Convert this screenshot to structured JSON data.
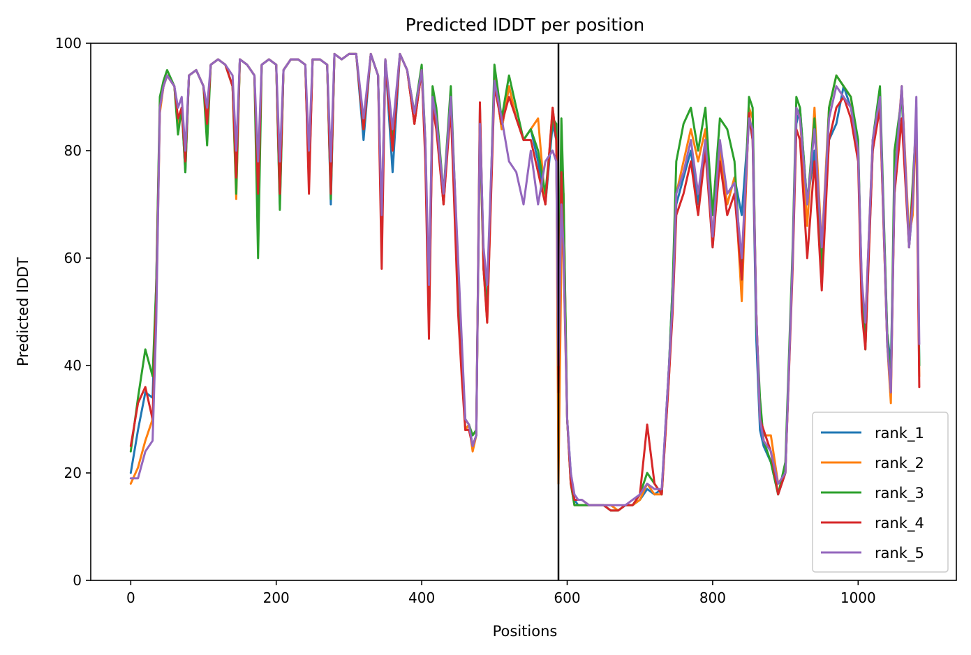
{
  "chart_data": {
    "type": "line",
    "title": "Predicted lDDT per position",
    "xlabel": "Positions",
    "ylabel": "Predicted lDDT",
    "xlim": [
      -55,
      1135
    ],
    "ylim": [
      0,
      100
    ],
    "xticks": [
      0,
      200,
      400,
      600,
      800,
      1000
    ],
    "yticks": [
      0,
      20,
      40,
      60,
      80,
      100
    ],
    "vline_x": 588,
    "grid": false,
    "legend_position": "lower-right",
    "colors": [
      "#1f77b4",
      "#ff7f0e",
      "#2ca02c",
      "#d62728",
      "#9467bd"
    ],
    "x": [
      0,
      10,
      20,
      30,
      35,
      40,
      45,
      50,
      60,
      65,
      70,
      75,
      80,
      90,
      100,
      105,
      110,
      120,
      130,
      140,
      145,
      150,
      160,
      170,
      175,
      180,
      190,
      200,
      205,
      210,
      220,
      230,
      240,
      245,
      250,
      260,
      270,
      275,
      280,
      290,
      300,
      310,
      320,
      330,
      340,
      345,
      350,
      360,
      370,
      380,
      390,
      400,
      405,
      410,
      415,
      420,
      430,
      440,
      450,
      455,
      460,
      465,
      470,
      475,
      480,
      485,
      490,
      500,
      510,
      520,
      530,
      540,
      550,
      560,
      570,
      580,
      585,
      588,
      592,
      595,
      600,
      605,
      610,
      615,
      620,
      630,
      640,
      650,
      660,
      670,
      680,
      690,
      700,
      710,
      720,
      730,
      740,
      745,
      750,
      760,
      770,
      780,
      790,
      800,
      810,
      820,
      830,
      840,
      850,
      855,
      860,
      865,
      870,
      880,
      890,
      900,
      910,
      915,
      920,
      930,
      940,
      950,
      960,
      970,
      980,
      990,
      1000,
      1005,
      1010,
      1020,
      1030,
      1040,
      1045,
      1050,
      1060,
      1070,
      1075,
      1080,
      1084
    ],
    "series": [
      {
        "name": "rank_1",
        "values": [
          20,
          28,
          35,
          34,
          55,
          88,
          92,
          94,
          92,
          85,
          88,
          76,
          94,
          95,
          92,
          84,
          96,
          97,
          96,
          92,
          74,
          97,
          96,
          94,
          68,
          96,
          97,
          96,
          70,
          95,
          97,
          97,
          96,
          74,
          97,
          97,
          96,
          70,
          98,
          97,
          98,
          98,
          82,
          98,
          94,
          66,
          97,
          76,
          98,
          95,
          85,
          95,
          80,
          48,
          88,
          85,
          70,
          90,
          58,
          42,
          28,
          29,
          25,
          27,
          88,
          60,
          50,
          94,
          84,
          92,
          86,
          82,
          84,
          78,
          70,
          85,
          82,
          30,
          82,
          70,
          30,
          20,
          15,
          14,
          14,
          14,
          14,
          14,
          13,
          13,
          14,
          14,
          15,
          17,
          16,
          17,
          40,
          55,
          70,
          75,
          80,
          70,
          82,
          62,
          80,
          70,
          75,
          68,
          86,
          82,
          45,
          28,
          25,
          22,
          16,
          20,
          60,
          85,
          88,
          70,
          80,
          60,
          82,
          85,
          92,
          88,
          80,
          55,
          45,
          80,
          90,
          46,
          40,
          72,
          92,
          62,
          70,
          88,
          40
        ]
      },
      {
        "name": "rank_2",
        "values": [
          18,
          21,
          26,
          30,
          50,
          87,
          92,
          94,
          92,
          84,
          88,
          77,
          94,
          95,
          92,
          84,
          96,
          97,
          96,
          92,
          71,
          97,
          96,
          94,
          72,
          96,
          97,
          96,
          71,
          95,
          97,
          97,
          96,
          74,
          97,
          97,
          96,
          72,
          98,
          97,
          98,
          98,
          84,
          98,
          94,
          67,
          97,
          80,
          98,
          95,
          85,
          95,
          80,
          48,
          88,
          85,
          70,
          90,
          55,
          40,
          28,
          29,
          24,
          27,
          84,
          58,
          48,
          94,
          84,
          92,
          86,
          82,
          84,
          86,
          70,
          88,
          82,
          18,
          60,
          72,
          30,
          18,
          14,
          14,
          14,
          14,
          14,
          14,
          14,
          13,
          14,
          14,
          15,
          18,
          16,
          16,
          38,
          52,
          72,
          78,
          84,
          78,
          84,
          64,
          80,
          70,
          75,
          52,
          88,
          86,
          50,
          30,
          27,
          27,
          18,
          20,
          60,
          88,
          86,
          66,
          88,
          62,
          88,
          94,
          92,
          90,
          80,
          52,
          48,
          82,
          88,
          44,
          33,
          75,
          92,
          64,
          68,
          86,
          38
        ]
      },
      {
        "name": "rank_3",
        "values": [
          24,
          34,
          43,
          38,
          55,
          90,
          93,
          95,
          92,
          83,
          88,
          76,
          94,
          95,
          92,
          81,
          96,
          97,
          96,
          92,
          72,
          97,
          96,
          94,
          60,
          96,
          97,
          96,
          69,
          95,
          97,
          97,
          96,
          75,
          97,
          97,
          96,
          71,
          98,
          97,
          98,
          98,
          84,
          98,
          94,
          65,
          97,
          82,
          98,
          95,
          87,
          96,
          82,
          50,
          92,
          88,
          72,
          92,
          58,
          40,
          30,
          29,
          27,
          28,
          85,
          58,
          50,
          96,
          86,
          94,
          88,
          82,
          84,
          80,
          72,
          86,
          85,
          40,
          86,
          72,
          30,
          18,
          14,
          14,
          14,
          14,
          14,
          14,
          13,
          13,
          14,
          14,
          16,
          20,
          18,
          16,
          40,
          55,
          78,
          85,
          88,
          80,
          88,
          68,
          86,
          84,
          78,
          56,
          90,
          88,
          48,
          34,
          26,
          22,
          16,
          22,
          62,
          90,
          88,
          70,
          86,
          58,
          88,
          94,
          92,
          90,
          82,
          54,
          43,
          82,
          92,
          46,
          36,
          80,
          90,
          62,
          74,
          86,
          40
        ]
      },
      {
        "name": "rank_4",
        "values": [
          25,
          33,
          36,
          30,
          52,
          88,
          92,
          94,
          92,
          86,
          88,
          78,
          94,
          95,
          92,
          85,
          96,
          97,
          96,
          92,
          75,
          97,
          96,
          94,
          72,
          96,
          97,
          96,
          72,
          95,
          97,
          97,
          96,
          72,
          97,
          97,
          96,
          72,
          98,
          97,
          98,
          98,
          84,
          98,
          94,
          58,
          97,
          80,
          98,
          95,
          85,
          95,
          78,
          45,
          88,
          84,
          70,
          88,
          50,
          38,
          28,
          28,
          25,
          27,
          89,
          58,
          48,
          92,
          85,
          90,
          86,
          82,
          82,
          76,
          70,
          88,
          82,
          35,
          76,
          60,
          30,
          18,
          15,
          15,
          15,
          14,
          14,
          14,
          13,
          13,
          14,
          14,
          16,
          29,
          18,
          16,
          38,
          50,
          68,
          72,
          78,
          68,
          80,
          62,
          78,
          68,
          72,
          56,
          87,
          82,
          50,
          30,
          28,
          24,
          16,
          20,
          58,
          84,
          82,
          60,
          78,
          54,
          82,
          88,
          90,
          86,
          78,
          50,
          43,
          80,
          88,
          44,
          35,
          72,
          86,
          62,
          72,
          86,
          36
        ]
      },
      {
        "name": "rank_5",
        "values": [
          19,
          19,
          24,
          26,
          48,
          88,
          92,
          94,
          92,
          88,
          90,
          80,
          94,
          95,
          92,
          88,
          96,
          97,
          96,
          94,
          80,
          97,
          96,
          94,
          78,
          96,
          97,
          96,
          78,
          95,
          97,
          97,
          96,
          80,
          97,
          97,
          96,
          78,
          98,
          97,
          98,
          98,
          86,
          98,
          94,
          68,
          97,
          84,
          98,
          95,
          87,
          95,
          82,
          55,
          90,
          86,
          72,
          90,
          60,
          45,
          30,
          29,
          25,
          27,
          85,
          62,
          55,
          93,
          86,
          78,
          76,
          70,
          80,
          70,
          78,
          80,
          78,
          40,
          70,
          62,
          30,
          20,
          16,
          15,
          15,
          14,
          14,
          14,
          14,
          14,
          14,
          15,
          16,
          18,
          17,
          17,
          40,
          52,
          72,
          76,
          82,
          72,
          82,
          64,
          82,
          72,
          74,
          60,
          86,
          84,
          50,
          30,
          26,
          24,
          18,
          20,
          60,
          88,
          86,
          70,
          84,
          62,
          86,
          92,
          90,
          88,
          80,
          56,
          48,
          82,
          90,
          44,
          35,
          74,
          92,
          62,
          70,
          90,
          44
        ]
      }
    ]
  }
}
